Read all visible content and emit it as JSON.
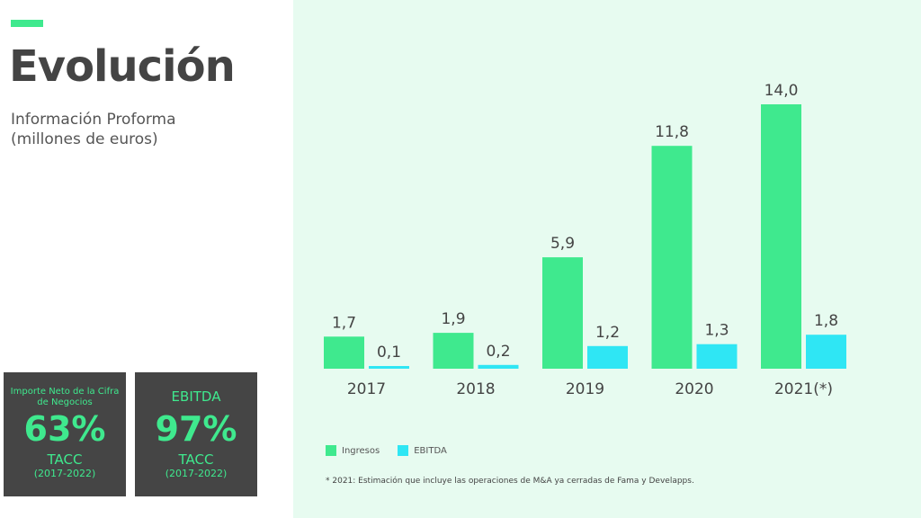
{
  "header": {
    "title": "Evolución",
    "subtitle_line1": "Información Proforma",
    "subtitle_line2": "(millones de euros)"
  },
  "kpis": [
    {
      "label": "Importe Neto de la Cifra de Negocios",
      "value": "63%",
      "metric": "TACC",
      "period": "(2017-2022)"
    },
    {
      "label": "EBITDA",
      "value": "97%",
      "metric": "TACC",
      "period": "(2017-2022)"
    }
  ],
  "chart_data": {
    "type": "bar",
    "categories": [
      "2017",
      "2018",
      "2019",
      "2020",
      "2021(*)"
    ],
    "series": [
      {
        "name": "Ingresos",
        "values": [
          1.7,
          1.9,
          5.9,
          11.8,
          14.0
        ],
        "labels": [
          "1,7",
          "1,9",
          "5,9",
          "11,8",
          "14,0"
        ],
        "color": "#3fe98e"
      },
      {
        "name": "EBITDA",
        "values": [
          0.1,
          0.2,
          1.2,
          1.3,
          1.8
        ],
        "labels": [
          "0,1",
          "0,2",
          "1,2",
          "1,3",
          "1,8"
        ],
        "color": "#2fe6f4"
      }
    ],
    "grid": false,
    "legend": "bottom-left",
    "note": "* 2021:  Estimación que incluye las operaciones  de M&A ya cerradas  de Fama y Develapps."
  }
}
